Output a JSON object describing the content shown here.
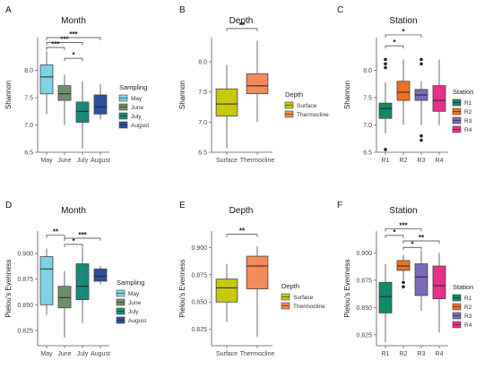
{
  "panels": [
    {
      "letter": "A",
      "title": "Month",
      "ylabel": "Shannon",
      "ylim": [
        6.5,
        8.6
      ],
      "yticks": [
        "6.5",
        "7.0",
        "7.5",
        "8.0"
      ],
      "ytick_values": [
        6.5,
        7.0,
        7.5,
        8.0
      ],
      "categories": [
        "May",
        "June",
        "July",
        "August"
      ],
      "legend_title": "Sampling",
      "legend_items": [
        "May",
        "June",
        "July",
        "August"
      ],
      "colors": [
        "#7fd3e6",
        "#6f8f6a",
        "#1a8a7a",
        "#2e4f9e"
      ],
      "boxes": [
        {
          "whislo": 7.2,
          "q1": 7.57,
          "med": 7.88,
          "q3": 8.1,
          "whishi": 8.35,
          "outliers": []
        },
        {
          "whislo": 7.0,
          "q1": 7.45,
          "med": 7.57,
          "q3": 7.72,
          "whishi": 7.92,
          "outliers": []
        },
        {
          "whislo": 6.57,
          "q1": 7.05,
          "med": 7.25,
          "q3": 7.42,
          "whishi": 7.8,
          "outliers": []
        },
        {
          "whislo": 7.1,
          "q1": 7.2,
          "med": 7.33,
          "q3": 7.55,
          "whishi": 7.75,
          "outliers": []
        }
      ],
      "brackets": [
        {
          "from": 0,
          "to": 1,
          "y": 8.42,
          "label": "***"
        },
        {
          "from": 0,
          "to": 2,
          "y": 8.51,
          "label": "***"
        },
        {
          "from": 0,
          "to": 3,
          "y": 8.6,
          "label": "***"
        },
        {
          "from": 1,
          "to": 2,
          "y": 8.22,
          "label": "*"
        }
      ]
    },
    {
      "letter": "B",
      "title": "Depth",
      "ylabel": "Shannon",
      "ylim": [
        6.5,
        8.4
      ],
      "yticks": [
        "6.5",
        "7.0",
        "7.5",
        "8.0"
      ],
      "ytick_values": [
        6.5,
        7.0,
        7.5,
        8.0
      ],
      "categories": [
        "Surface",
        "Thermocline"
      ],
      "legend_title": "Depth",
      "legend_items": [
        "Surface",
        "Thermocline"
      ],
      "colors": [
        "#c8c80e",
        "#f4895a"
      ],
      "boxes": [
        {
          "whislo": 6.57,
          "q1": 7.1,
          "med": 7.3,
          "q3": 7.55,
          "whishi": 7.95,
          "outliers": []
        },
        {
          "whislo": 7.0,
          "q1": 7.47,
          "med": 7.6,
          "q3": 7.8,
          "whishi": 8.35,
          "outliers": []
        }
      ],
      "brackets": [
        {
          "from": 0,
          "to": 1,
          "y": 8.55,
          "label": "**"
        }
      ]
    },
    {
      "letter": "C",
      "title": "Station",
      "ylabel": "Shannon",
      "ylim": [
        6.5,
        8.6
      ],
      "yticks": [
        "6.5",
        "7.0",
        "7.5",
        "8.0"
      ],
      "ytick_values": [
        6.5,
        7.0,
        7.5,
        8.0
      ],
      "categories": [
        "R1",
        "R2",
        "R3",
        "R4"
      ],
      "legend_title": "Station",
      "legend_items": [
        "R1",
        "R2",
        "R3",
        "R4"
      ],
      "colors": [
        "#0f8a6a",
        "#f07020",
        "#7a6ab8",
        "#e8308a"
      ],
      "boxes": [
        {
          "whislo": 6.85,
          "q1": 7.12,
          "med": 7.3,
          "q3": 7.4,
          "whishi": 7.78,
          "outliers": [
            8.2,
            8.12,
            8.05,
            6.55
          ]
        },
        {
          "whislo": 7.0,
          "q1": 7.45,
          "med": 7.6,
          "q3": 7.8,
          "whishi": 8.2,
          "outliers": []
        },
        {
          "whislo": 7.0,
          "q1": 7.45,
          "med": 7.55,
          "q3": 7.65,
          "whishi": 7.8,
          "outliers": [
            8.2,
            8.12,
            6.8,
            6.72
          ]
        },
        {
          "whislo": 7.0,
          "q1": 7.25,
          "med": 7.45,
          "q3": 7.72,
          "whishi": 8.2,
          "outliers": []
        }
      ],
      "brackets": [
        {
          "from": 0,
          "to": 1,
          "y": 8.45,
          "label": "*"
        },
        {
          "from": 0,
          "to": 2,
          "y": 8.65,
          "label": "*"
        }
      ]
    },
    {
      "letter": "D",
      "title": "Month",
      "ylabel": "Pielou's Evenness",
      "ylim": [
        0.81,
        0.922
      ],
      "yticks": [
        "0.825",
        "0.850",
        "0.875",
        "0.900"
      ],
      "ytick_values": [
        0.825,
        0.85,
        0.875,
        0.9
      ],
      "categories": [
        "May",
        "June",
        "July",
        "August"
      ],
      "legend_title": "Sampling",
      "legend_items": [
        "May",
        "June",
        "July",
        "August"
      ],
      "colors": [
        "#7fd3e6",
        "#6f8f6a",
        "#1a8a7a",
        "#2e4f9e"
      ],
      "boxes": [
        {
          "whislo": 0.84,
          "q1": 0.85,
          "med": 0.885,
          "q3": 0.897,
          "whishi": 0.905,
          "outliers": []
        },
        {
          "whislo": 0.818,
          "q1": 0.847,
          "med": 0.857,
          "q3": 0.868,
          "whishi": 0.883,
          "outliers": []
        },
        {
          "whislo": 0.832,
          "q1": 0.855,
          "med": 0.868,
          "q3": 0.89,
          "whishi": 0.906,
          "outliers": []
        },
        {
          "whislo": 0.87,
          "q1": 0.873,
          "med": 0.878,
          "q3": 0.885,
          "whishi": 0.888,
          "outliers": []
        }
      ],
      "brackets": [
        {
          "from": 0,
          "to": 1,
          "y": 0.918,
          "label": "**"
        },
        {
          "from": 1,
          "to": 3,
          "y": 0.915,
          "label": "***"
        },
        {
          "from": 1,
          "to": 2,
          "y": 0.909,
          "label": "*"
        }
      ]
    },
    {
      "letter": "E",
      "title": "Depth",
      "ylabel": "Pielou's Evenness",
      "ylim": [
        0.81,
        0.915
      ],
      "yticks": [
        "0.825",
        "0.850",
        "0.875",
        "0.900"
      ],
      "ytick_values": [
        0.825,
        0.85,
        0.875,
        0.9
      ],
      "categories": [
        "Surface",
        "Thermocline"
      ],
      "legend_title": "Depth",
      "legend_items": [
        "Surface",
        "Thermocline"
      ],
      "colors": [
        "#c8c80e",
        "#f4895a"
      ],
      "boxes": [
        {
          "whislo": 0.832,
          "q1": 0.85,
          "med": 0.863,
          "q3": 0.871,
          "whishi": 0.885,
          "outliers": []
        },
        {
          "whislo": 0.818,
          "q1": 0.862,
          "med": 0.883,
          "q3": 0.892,
          "whishi": 0.901,
          "outliers": []
        }
      ],
      "brackets": [
        {
          "from": 0,
          "to": 1,
          "y": 0.912,
          "label": "**"
        }
      ]
    },
    {
      "letter": "F",
      "title": "Station",
      "ylabel": "Pielou's Evenness",
      "ylim": [
        0.815,
        0.92
      ],
      "yticks": [
        "0.825",
        "0.850",
        "0.875",
        "0.900"
      ],
      "ytick_values": [
        0.825,
        0.85,
        0.875,
        0.9
      ],
      "categories": [
        "R1",
        "R2",
        "R3",
        "R4"
      ],
      "legend_title": "Station",
      "legend_items": [
        "R1",
        "R2",
        "R3",
        "R4"
      ],
      "colors": [
        "#0f8a6a",
        "#f07020",
        "#7a6ab8",
        "#e8308a"
      ],
      "boxes": [
        {
          "whislo": 0.818,
          "q1": 0.845,
          "med": 0.86,
          "q3": 0.873,
          "whishi": 0.89,
          "outliers": []
        },
        {
          "whislo": 0.875,
          "q1": 0.884,
          "med": 0.888,
          "q3": 0.893,
          "whishi": 0.898,
          "outliers": [
            0.873,
            0.869
          ]
        },
        {
          "whislo": 0.847,
          "q1": 0.861,
          "med": 0.878,
          "q3": 0.89,
          "whishi": 0.902,
          "outliers": []
        },
        {
          "whislo": 0.827,
          "q1": 0.858,
          "med": 0.87,
          "q3": 0.888,
          "whishi": 0.9,
          "outliers": []
        }
      ],
      "brackets": [
        {
          "from": 0,
          "to": 1,
          "y": 0.916,
          "label": "*"
        },
        {
          "from": 0,
          "to": 2,
          "y": 0.922,
          "label": "***"
        },
        {
          "from": 1,
          "to": 3,
          "y": 0.911,
          "label": "**"
        },
        {
          "from": 1,
          "to": 2,
          "y": 0.905,
          "label": "*"
        }
      ]
    }
  ],
  "chart_data": [
    {
      "type": "box",
      "title": "Month",
      "ylabel": "Shannon",
      "categories": [
        "May",
        "June",
        "July",
        "August"
      ],
      "ylim": [
        6.5,
        8.6
      ],
      "legend": "Sampling",
      "medians": [
        7.88,
        7.57,
        7.25,
        7.33
      ]
    },
    {
      "type": "box",
      "title": "Depth",
      "ylabel": "Shannon",
      "categories": [
        "Surface",
        "Thermocline"
      ],
      "ylim": [
        6.5,
        8.4
      ],
      "legend": "Depth",
      "medians": [
        7.3,
        7.6
      ]
    },
    {
      "type": "box",
      "title": "Station",
      "ylabel": "Shannon",
      "categories": [
        "R1",
        "R2",
        "R3",
        "R4"
      ],
      "ylim": [
        6.5,
        8.6
      ],
      "legend": "Station",
      "medians": [
        7.3,
        7.6,
        7.55,
        7.45
      ]
    },
    {
      "type": "box",
      "title": "Month",
      "ylabel": "Pielou's Evenness",
      "categories": [
        "May",
        "June",
        "July",
        "August"
      ],
      "ylim": [
        0.81,
        0.922
      ],
      "legend": "Sampling",
      "medians": [
        0.885,
        0.857,
        0.868,
        0.878
      ]
    },
    {
      "type": "box",
      "title": "Depth",
      "ylabel": "Pielou's Evenness",
      "categories": [
        "Surface",
        "Thermocline"
      ],
      "ylim": [
        0.81,
        0.915
      ],
      "legend": "Depth",
      "medians": [
        0.863,
        0.883
      ]
    },
    {
      "type": "box",
      "title": "Station",
      "ylabel": "Pielou's Evenness",
      "categories": [
        "R1",
        "R2",
        "R3",
        "R4"
      ],
      "ylim": [
        0.815,
        0.92
      ],
      "legend": "Station",
      "medians": [
        0.86,
        0.888,
        0.878,
        0.87
      ]
    }
  ]
}
